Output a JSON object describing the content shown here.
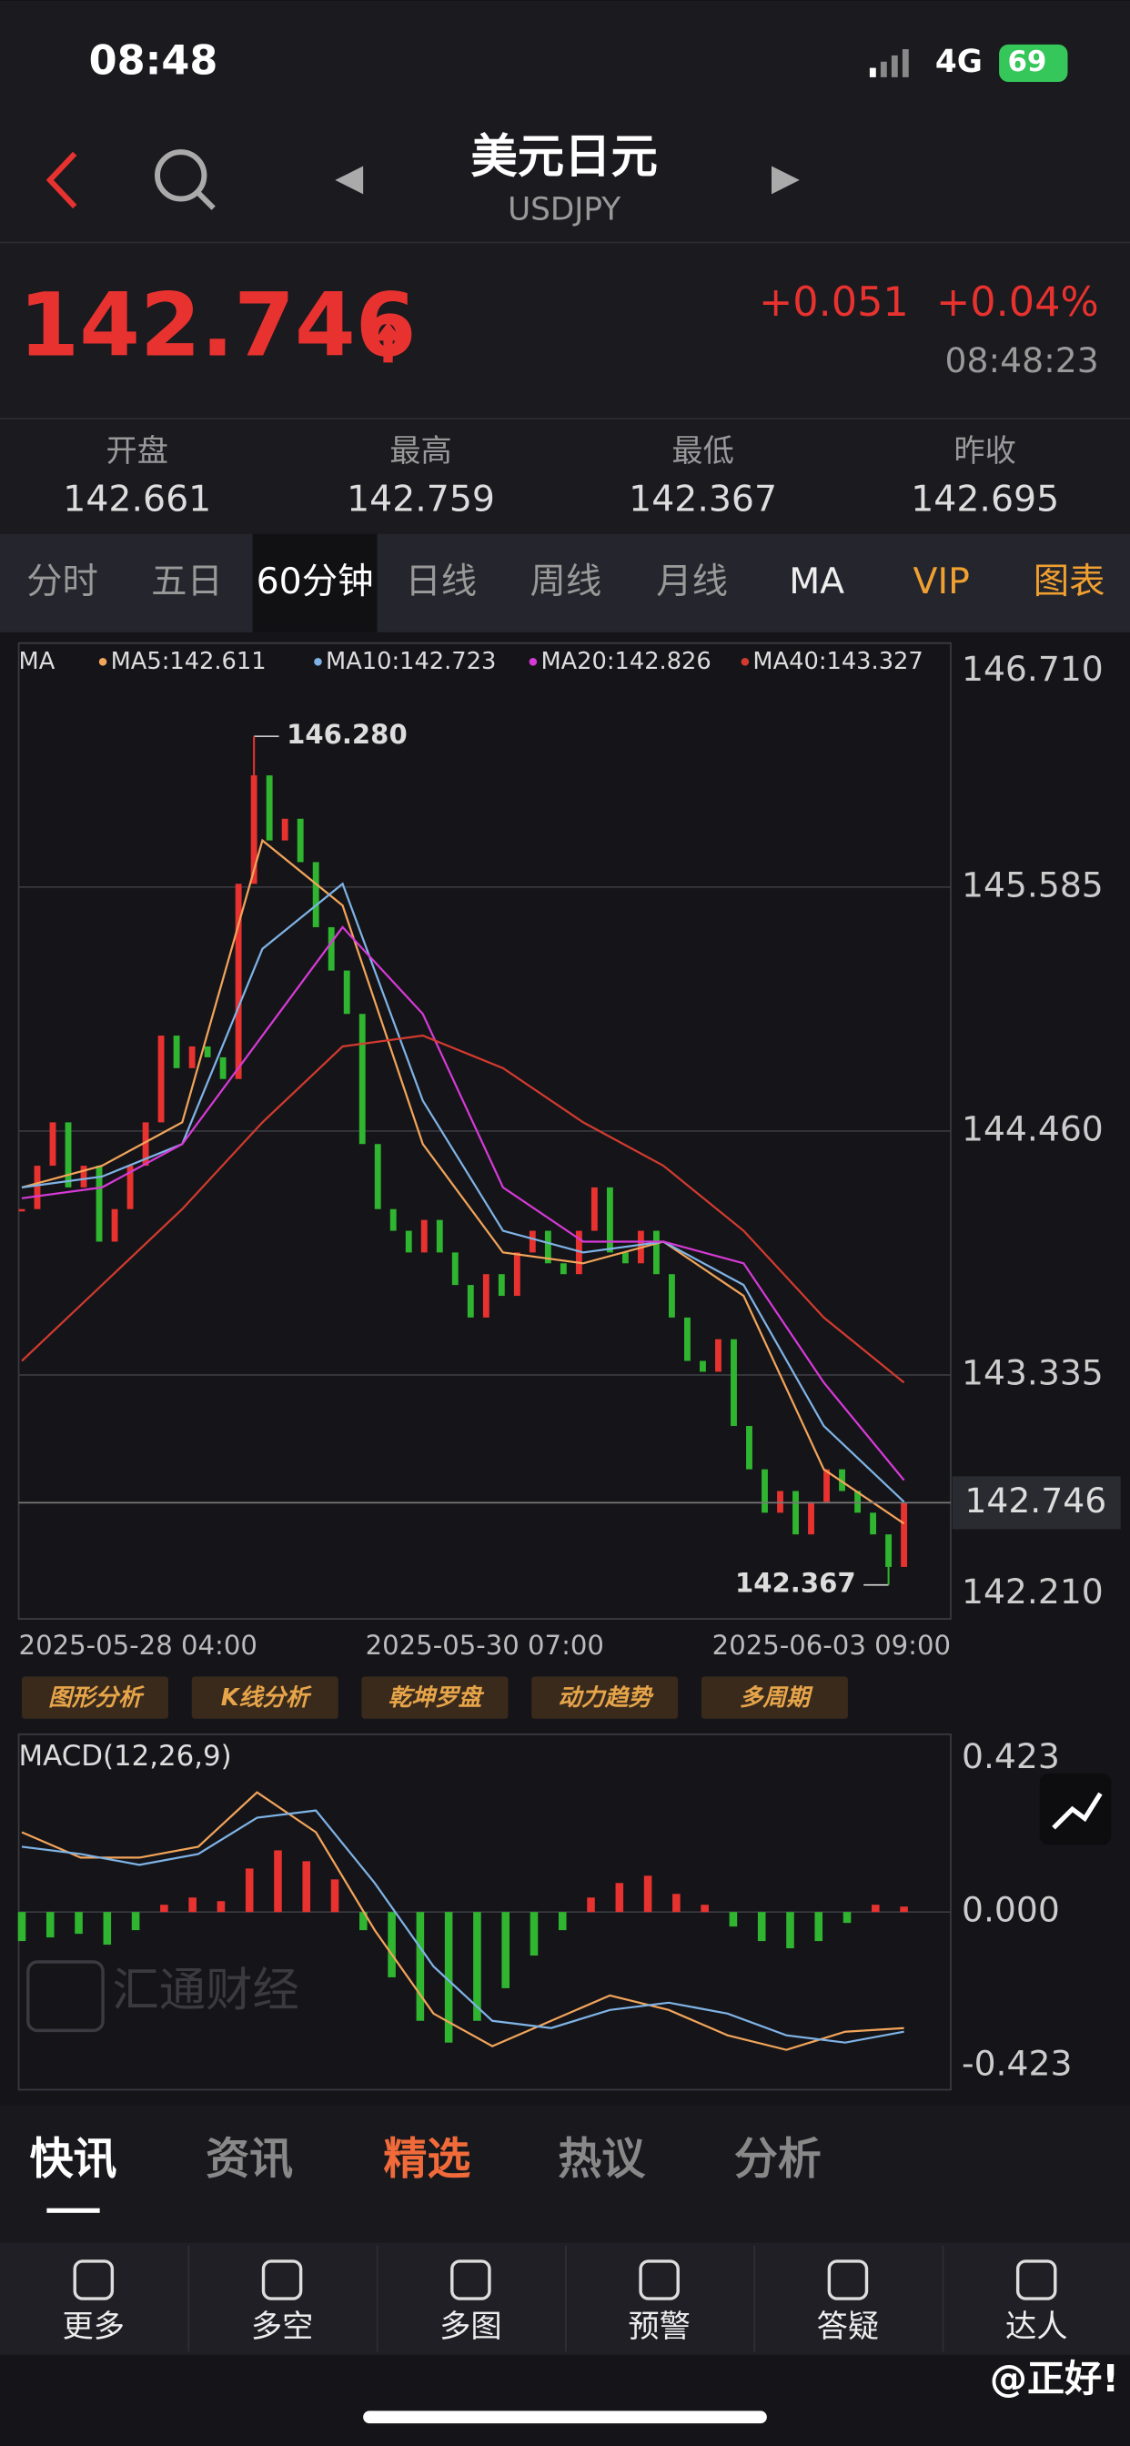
{
  "status": {
    "time": "08:48",
    "network": "4G",
    "battery": "69"
  },
  "header": {
    "title": "美元日元",
    "subtitle": "USDJPY"
  },
  "quote": {
    "price": "142.746",
    "change": "+0.051",
    "change_pct": "+0.04%",
    "time": "08:48:23"
  },
  "stats": [
    {
      "label": "开盘",
      "value": "142.661"
    },
    {
      "label": "最高",
      "value": "142.759"
    },
    {
      "label": "最低",
      "value": "142.367"
    },
    {
      "label": "昨收",
      "value": "142.695"
    }
  ],
  "tabs": [
    "分时",
    "五日",
    "60分钟",
    "日线",
    "周线",
    "月线",
    "MA",
    "VIP",
    "图表"
  ],
  "chart_data": [
    {
      "type": "candlestick",
      "title": "MA",
      "closes": [
        144.1,
        144.3,
        144.5,
        144.2,
        144.3,
        143.95,
        144.1,
        144.3,
        144.5,
        144.9,
        144.75,
        144.85,
        144.8,
        144.7,
        145.6,
        146.1,
        145.8,
        145.9,
        145.7,
        145.4,
        145.2,
        145.0,
        144.4,
        144.1,
        144.0,
        143.9,
        144.05,
        143.9,
        143.75,
        143.6,
        143.8,
        143.7,
        143.9,
        144.0,
        143.85,
        143.8,
        144.0,
        144.2,
        143.9,
        143.85,
        144.0,
        143.8,
        143.6,
        143.4,
        143.35,
        143.5,
        143.1,
        142.9,
        142.7,
        142.8,
        142.6,
        142.75,
        142.9,
        142.8,
        142.7,
        142.6,
        142.45,
        142.746
      ],
      "series": [
        {
          "name": "MA5:142.611",
          "color": "#f2a45a",
          "values": [
            144.2,
            144.3,
            144.5,
            145.8,
            145.5,
            144.4,
            143.9,
            143.85,
            143.95,
            143.7,
            142.9,
            142.65
          ]
        },
        {
          "name": "MA10:142.723",
          "color": "#7fb3e6",
          "values": [
            144.2,
            144.25,
            144.4,
            145.3,
            145.6,
            144.6,
            144.0,
            143.9,
            143.95,
            143.75,
            143.1,
            142.75
          ]
        },
        {
          "name": "MA20:142.826",
          "color": "#d63ad6",
          "values": [
            144.15,
            144.2,
            144.4,
            144.9,
            145.4,
            145.0,
            144.2,
            143.95,
            143.95,
            143.85,
            143.3,
            142.85
          ]
        },
        {
          "name": "MA40:143.327",
          "color": "#d33a2f",
          "values": [
            143.4,
            143.75,
            144.1,
            144.5,
            144.85,
            144.9,
            144.75,
            144.5,
            144.3,
            144.0,
            143.6,
            143.3
          ]
        }
      ],
      "ylim": [
        142.21,
        146.71
      ],
      "yticks": [
        {
          "value": 146.71,
          "label": "146.710"
        },
        145.585,
        {
          "value": 144.46,
          "label": "144.460"
        },
        143.335,
        {
          "value": 142.21,
          "label": "142.210"
        }
      ],
      "current_price": 142.746,
      "high": {
        "value": 146.28,
        "label": "146.280"
      },
      "low": 142.367,
      "x_labels": [
        "2025-05-28 04:00",
        "2025-05-30 07:00",
        "2025-06-03 09:00"
      ],
      "up_color": "#e8322f",
      "down_color": "#2fb52f"
    },
    {
      "type": "macd",
      "title": "MACD(12,26,9)",
      "histogram": [
        -0.08,
        -0.07,
        -0.06,
        -0.09,
        -0.05,
        0.02,
        0.04,
        0.03,
        0.12,
        0.17,
        0.14,
        0.09,
        -0.05,
        -0.18,
        -0.3,
        -0.36,
        -0.3,
        -0.21,
        -0.12,
        -0.05,
        0.04,
        0.08,
        0.1,
        0.05,
        0.02,
        -0.04,
        -0.08,
        -0.1,
        -0.08,
        -0.03,
        0.02,
        0.015
      ],
      "series": [
        {
          "color": "#f2a45a",
          "values": [
            0.22,
            0.15,
            0.15,
            0.18,
            0.33,
            0.22,
            -0.05,
            -0.28,
            -0.37,
            -0.3,
            -0.23,
            -0.27,
            -0.34,
            -0.38,
            -0.33,
            -0.32
          ]
        },
        {
          "color": "#7fb3e6",
          "values": [
            0.18,
            0.16,
            0.13,
            0.16,
            0.26,
            0.28,
            0.08,
            -0.15,
            -0.3,
            -0.32,
            -0.27,
            -0.25,
            -0.28,
            -0.34,
            -0.36,
            -0.33
          ]
        }
      ],
      "ylim": [
        -0.49,
        0.49
      ],
      "yticks": [
        0.423,
        {
          "value": 0,
          "label": "0.000"
        },
        -0.423
      ],
      "up_color": "#e8322f",
      "down_color": "#2fb52f"
    }
  ],
  "buttons": [
    "图形分析",
    "K线分析",
    "乾坤罗盘",
    "动力趋势",
    "多周期"
  ],
  "watermark": "汇通财经",
  "news_tabs": [
    "快讯",
    "资讯",
    "精选",
    "热议",
    "分析"
  ],
  "nav": [
    "更多",
    "多空",
    "多图",
    "预警",
    "答疑",
    "达人"
  ],
  "credit": "@正好!"
}
